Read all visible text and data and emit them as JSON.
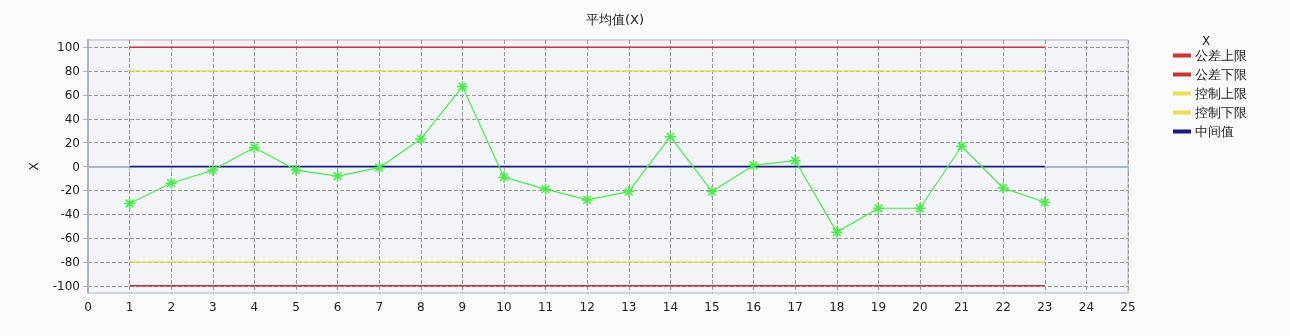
{
  "chart_data": {
    "type": "line",
    "title": "平均值(X)",
    "ylabel": "X",
    "legend_title": "X",
    "xlim": [
      0,
      25
    ],
    "xticks": [
      0,
      1,
      2,
      3,
      4,
      5,
      6,
      7,
      8,
      9,
      10,
      11,
      12,
      13,
      14,
      15,
      16,
      17,
      18,
      19,
      20,
      21,
      22,
      23,
      24,
      25
    ],
    "ylim": [
      -106,
      106
    ],
    "yticks": [
      -100,
      -80,
      -60,
      -40,
      -20,
      0,
      20,
      40,
      60,
      80,
      100
    ],
    "grid": true,
    "legend": "right",
    "series": [
      {
        "color": "#44ee44",
        "marker": "star",
        "x": [
          1,
          2,
          3,
          4,
          5,
          6,
          7,
          8,
          9,
          10,
          11,
          12,
          13,
          14,
          15,
          16,
          17,
          18,
          19,
          20,
          21,
          22,
          23
        ],
        "values": [
          -31,
          -14,
          -3,
          16,
          -3,
          -8,
          -1,
          23,
          67,
          -9,
          -19,
          -28,
          -21,
          25,
          -21,
          1,
          5,
          -55,
          -35,
          -35,
          17,
          -18,
          -30
        ]
      },
      {
        "name": "公差上限",
        "color": "#cc3333",
        "marker": "none",
        "x": [
          1,
          23
        ],
        "values": [
          100,
          100
        ]
      },
      {
        "name": "公差下限",
        "color": "#cc3333",
        "marker": "none",
        "x": [
          1,
          23
        ],
        "values": [
          -100,
          -100
        ]
      },
      {
        "name": "控制上限",
        "color": "#e8e050",
        "marker": "none",
        "x": [
          1,
          23
        ],
        "values": [
          80,
          80
        ]
      },
      {
        "name": "控制下限",
        "color": "#e8e050",
        "marker": "none",
        "x": [
          1,
          23
        ],
        "values": [
          -80,
          -80
        ]
      },
      {
        "name": "中间值",
        "color": "#1a1a80",
        "marker": "none",
        "x": [
          1,
          23
        ],
        "values": [
          0,
          0
        ]
      }
    ]
  }
}
